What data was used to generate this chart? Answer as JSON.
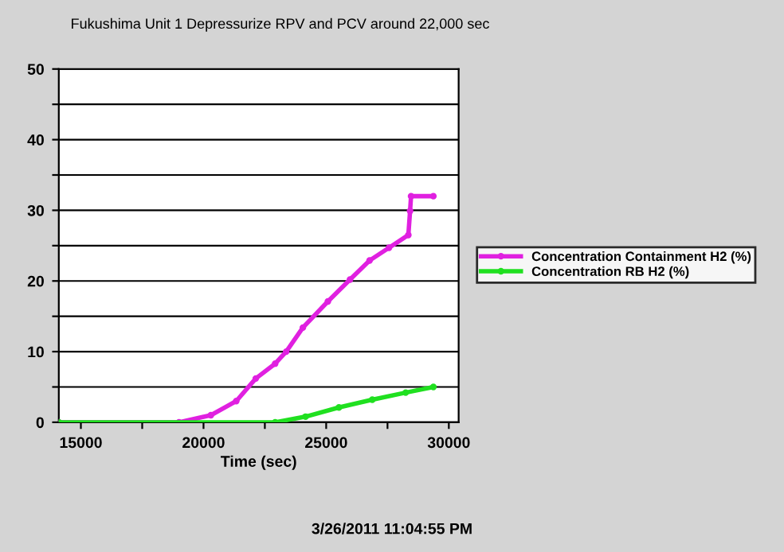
{
  "chart_data": {
    "type": "line",
    "title": "Fukushima Unit 1 Depressurize RPV and PCV around 22,000 sec",
    "xlabel": "Time (sec)",
    "series": [
      {
        "name": "Concentration Containment H2 (%)",
        "color": "#e020e0",
        "x": [
          14100,
          19000,
          20300,
          21335,
          22130,
          22920,
          23370,
          24050,
          25070,
          25970,
          26770,
          27560,
          28350,
          28420,
          28460,
          29370
        ],
        "values": [
          0,
          0,
          1,
          3,
          6.2,
          8.3,
          10,
          13.4,
          17.1,
          20.2,
          22.9,
          24.7,
          26.5,
          29.9,
          32,
          32
        ]
      },
      {
        "name": "Concentration RB H2 (%)",
        "color": "#20e020",
        "x": [
          14100,
          22920,
          24160,
          25520,
          26880,
          28240,
          29370
        ],
        "values": [
          0,
          0,
          0.8,
          2.1,
          3.2,
          4.2,
          5.0
        ]
      }
    ],
    "xlim": [
      14100,
      30400
    ],
    "ylim": [
      0,
      50
    ],
    "xticks": [
      15000,
      {
        "value": 17500,
        "label": null
      },
      20000,
      {
        "value": 22500,
        "label": null
      },
      25000,
      {
        "value": 27500,
        "label": null
      },
      30000
    ],
    "yticks": [
      0,
      {
        "value": 5,
        "label": null
      },
      10,
      {
        "value": 15,
        "label": null
      },
      20,
      {
        "value": 25,
        "label": null
      },
      30,
      {
        "value": 35,
        "label": null
      },
      40,
      {
        "value": 45,
        "label": null
      },
      50
    ],
    "grid": "y",
    "legend": "right",
    "marker": "circle",
    "line_style": "solid",
    "annotations": [
      "3/26/2011 11:04:55 PM"
    ]
  }
}
